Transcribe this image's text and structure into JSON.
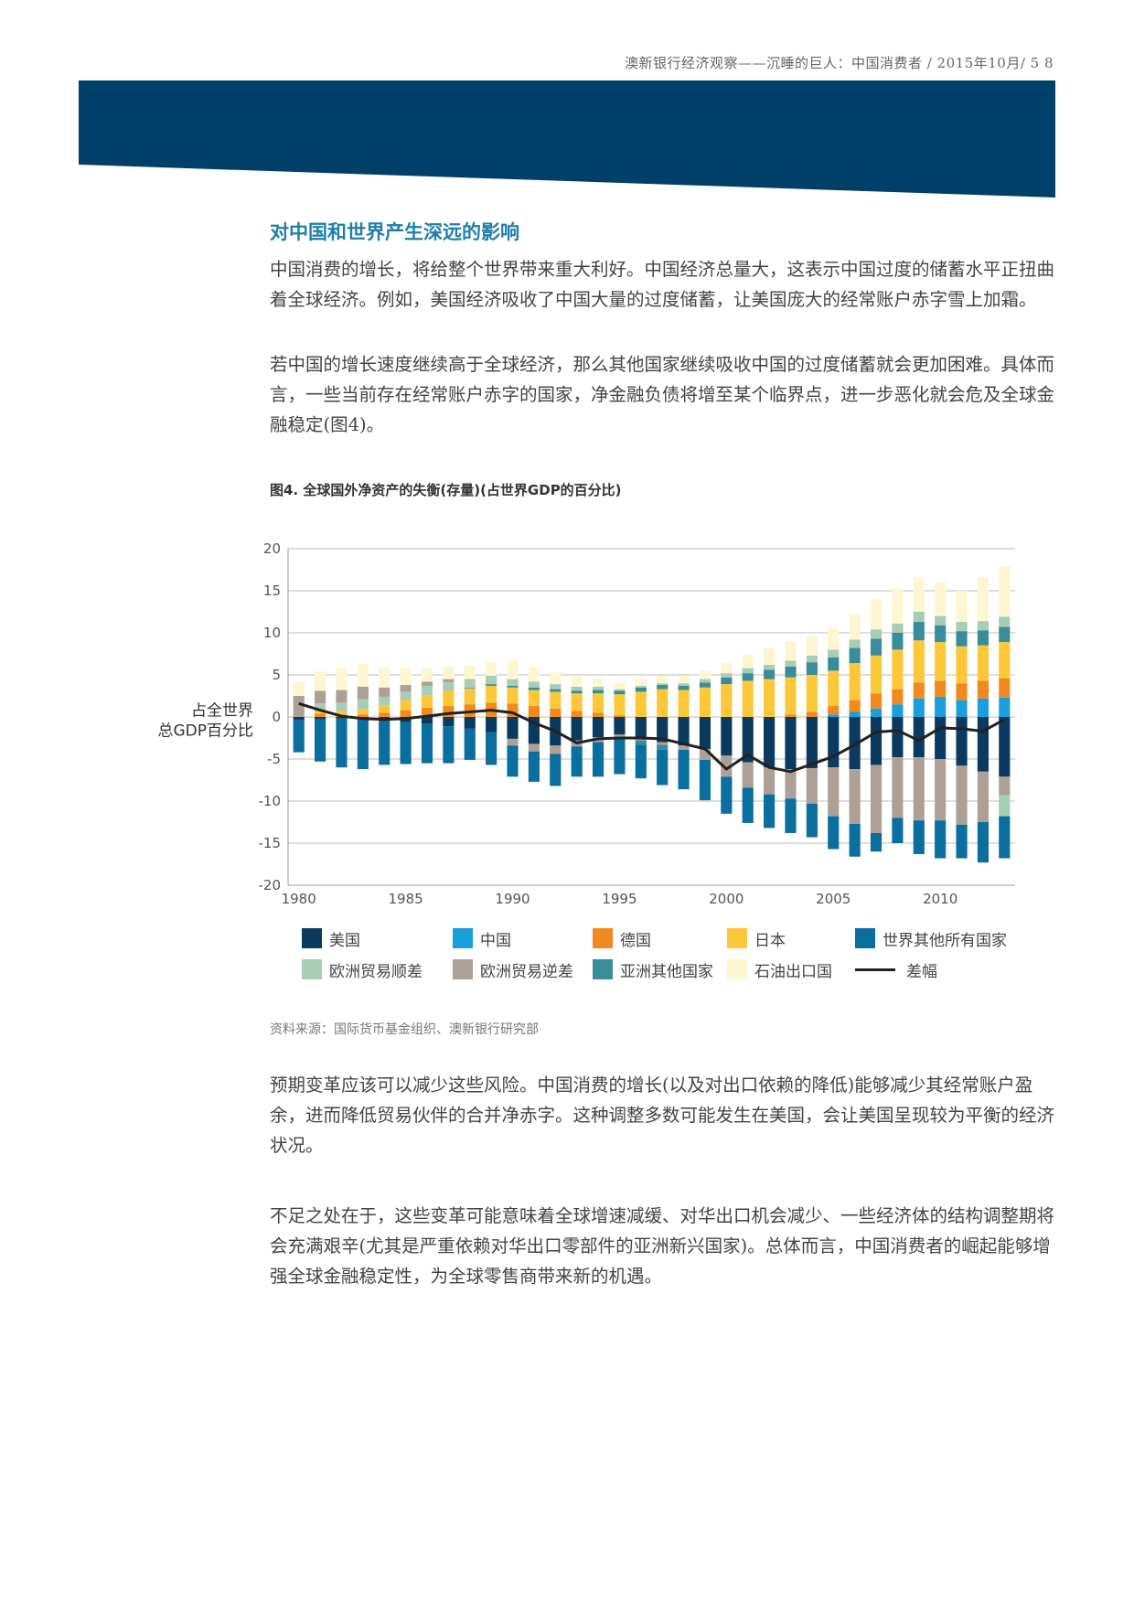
{
  "header": {
    "running_title": "澳新银行经济观察——沉睡的巨人：中国消费者 / 2015年10月/ 5   8"
  },
  "section": {
    "title": "对中国和世界产生深远的影响"
  },
  "paragraphs": {
    "p1": "中国消费的增长，将给整个世界带来重大利好。中国经济总量大，这表示中国过度的储蓄水平正扭曲着全球经济。例如，美国经济吸收了中国大量的过度储蓄，让美国庞大的经常账户赤字雪上加霜。",
    "p2": "若中国的增长速度继续高于全球经济，那么其他国家继续吸收中国的过度储蓄就会更加困难。具体而言，一些当前存在经常账户赤字的国家，净金融负债将增至某个临界点，进一步恶化就会危及全球金融稳定(图4)。",
    "p3": "预期变革应该可以减少这些风险。中国消费的增长(以及对出口依赖的降低)能够减少其经常账户盈余，进而降低贸易伙伴的合并净赤字。这种调整多数可能发生在美国，会让美国呈现较为平衡的经济状况。",
    "p4": "不足之处在于，这些变革可能意味着全球增速减缓、对华出口机会减少、一些经济体的结构调整期将会充满艰辛(尤其是严重依赖对华出口零部件的亚洲新兴国家)。总体而言，中国消费者的崛起能够增强全球金融稳定性，为全球零售商带来新的机遇。"
  },
  "figure": {
    "title": "图4. 全球国外净资产的失衡(存量)(占世界GDP的百分比)",
    "source": "资料来源：国际货币基金组织、澳新银行研究部"
  },
  "colors": {
    "banner": "#004068",
    "us": "#0b3a5e",
    "china": "#1a9fdc",
    "germany": "#f08a1e",
    "japan": "#fcc83a",
    "rest_of_world": "#0a6e9e",
    "euro_surplus": "#a9ccb4",
    "euro_deficit": "#ada197",
    "other_asia": "#3a8c9a",
    "oil": "#fdf6d2",
    "diff": "#222222"
  },
  "chart_data": {
    "type": "bar",
    "stacked": true,
    "ylabel": "占全世界\n总GDP百分比",
    "ylim": [
      -20,
      20
    ],
    "yticks": [
      20,
      15,
      10,
      5,
      0,
      -5,
      -10,
      -15,
      -20
    ],
    "xticks": [
      1980,
      1985,
      1990,
      1995,
      2000,
      2005,
      2010
    ],
    "x": [
      1980,
      1981,
      1982,
      1983,
      1984,
      1985,
      1986,
      1987,
      1988,
      1989,
      1990,
      1991,
      1992,
      1993,
      1994,
      1995,
      1996,
      1997,
      1998,
      1999,
      2000,
      2001,
      2002,
      2003,
      2004,
      2005,
      2006,
      2007,
      2008,
      2009,
      2010,
      2011,
      2012,
      2013
    ],
    "legend": [
      "美国",
      "中国",
      "德国",
      "日本",
      "世界其他所有国家",
      "欧洲贸易顺差",
      "欧洲贸易逆差",
      "亚洲其他国家",
      "石油出口国",
      "差幅"
    ],
    "positive_series": [
      {
        "key": "china",
        "name": "中国",
        "values": [
          0,
          0,
          0,
          0,
          0,
          0,
          0,
          0,
          0,
          0,
          0,
          0,
          0,
          0,
          0,
          0,
          0,
          0,
          0,
          0,
          0,
          0,
          0,
          0,
          0,
          0.3,
          0.6,
          1.0,
          1.5,
          2.2,
          2.4,
          2.0,
          2.2,
          2.3
        ]
      },
      {
        "key": "germany",
        "name": "德国",
        "values": [
          0,
          0.4,
          0.3,
          0.3,
          0.5,
          0.8,
          1.1,
          1.3,
          1.5,
          1.7,
          1.6,
          1.3,
          1.0,
          0.7,
          0.5,
          0.2,
          0,
          0,
          0,
          0,
          0,
          0,
          0,
          0.3,
          0.6,
          1.0,
          1.4,
          1.8,
          1.8,
          1.9,
          1.9,
          2.0,
          2.1,
          2.3
        ]
      },
      {
        "key": "japan",
        "name": "日本",
        "values": [
          0,
          0.2,
          0.4,
          0.6,
          0.9,
          1.2,
          1.5,
          1.8,
          1.9,
          2.0,
          1.9,
          1.9,
          2.0,
          2.1,
          2.3,
          2.5,
          3.0,
          3.3,
          3.2,
          3.5,
          3.9,
          4.3,
          4.5,
          4.4,
          4.4,
          4.2,
          4.4,
          4.5,
          4.7,
          5.0,
          4.6,
          4.4,
          4.2,
          4.3
        ]
      },
      {
        "key": "other_asia",
        "name": "亚洲其他国家",
        "values": [
          0,
          0,
          0,
          0,
          0,
          0,
          0,
          0,
          0.1,
          0.2,
          0.2,
          0.3,
          0.3,
          0.3,
          0.4,
          0.4,
          0.5,
          0.5,
          0.5,
          0.6,
          0.8,
          0.9,
          1.1,
          1.3,
          1.5,
          1.6,
          1.8,
          2.0,
          2.0,
          2.2,
          2.0,
          1.8,
          1.8,
          1.8
        ]
      },
      {
        "key": "euro_surplus",
        "name": "欧洲贸易顺差",
        "values": [
          0,
          1.0,
          1.0,
          1.2,
          1.0,
          1.0,
          1.1,
          1.0,
          1.0,
          1.0,
          0.8,
          0.7,
          0.6,
          0.5,
          0.4,
          0.2,
          0.2,
          0.2,
          0.3,
          0.4,
          0.5,
          0.6,
          0.6,
          0.7,
          0.8,
          0.9,
          1.0,
          1.1,
          1.1,
          1.2,
          1.1,
          1.1,
          1.1,
          1.2
        ]
      },
      {
        "key": "euro_deficit",
        "name": "欧洲贸易逆差",
        "values": [
          2.5,
          1.5,
          1.5,
          1.5,
          1.1,
          0.8,
          0.5,
          0.4,
          0,
          0,
          0,
          0,
          0,
          0,
          0,
          0,
          0,
          0,
          0,
          0,
          0,
          0,
          0,
          0,
          0,
          0,
          0,
          0,
          0,
          0,
          0,
          0,
          0,
          0
        ]
      },
      {
        "key": "oil",
        "name": "石油出口国",
        "values": [
          1.7,
          2.3,
          2.6,
          2.7,
          2.4,
          2.0,
          1.6,
          1.5,
          1.6,
          1.6,
          2.2,
          1.7,
          1.4,
          1.2,
          1.0,
          0.8,
          0.8,
          0.9,
          0.9,
          1.0,
          1.2,
          1.6,
          2.0,
          2.3,
          2.3,
          2.5,
          3.0,
          3.6,
          4.2,
          4.0,
          4.0,
          3.7,
          5.2,
          6.0
        ]
      }
    ],
    "negative_series": [
      {
        "key": "us",
        "name": "美国",
        "values": [
          -0.4,
          -0.3,
          -0.2,
          -0.2,
          -0.5,
          -0.6,
          -0.8,
          -1.1,
          -1.4,
          -1.8,
          -2.6,
          -3.2,
          -3.4,
          -2.8,
          -2.4,
          -2.1,
          -2.4,
          -3.0,
          -3.4,
          -3.8,
          -4.6,
          -5.4,
          -6.0,
          -6.2,
          -6.1,
          -6.0,
          -6.2,
          -5.7,
          -4.8,
          -4.8,
          -5.0,
          -5.8,
          -6.5,
          -7.1
        ]
      },
      {
        "key": "euro_deficit_neg",
        "name": "欧洲贸易逆差",
        "values": [
          0,
          0,
          0,
          0,
          0,
          0,
          0,
          0,
          0,
          0,
          -0.8,
          -0.9,
          -1.0,
          -0.7,
          -0.6,
          -0.4,
          -0.4,
          -0.3,
          -0.5,
          -1.3,
          -2.5,
          -3.0,
          -3.2,
          -3.5,
          -4.2,
          -5.8,
          -6.5,
          -8.1,
          -7.2,
          -7.5,
          -7.3,
          -7.0,
          -6.0,
          -2.2
        ]
      },
      {
        "key": "euro_surplus_neg",
        "name": "欧洲贸易顺差",
        "values": [
          0,
          0,
          0,
          0,
          0,
          0,
          0,
          0,
          0,
          0,
          0,
          0,
          0,
          0,
          0,
          0,
          0,
          0,
          0,
          0,
          0,
          0,
          0,
          0,
          0,
          0,
          0,
          0,
          0,
          0,
          0,
          0,
          0,
          -2.5
        ]
      },
      {
        "key": "other_asia_neg",
        "name": "亚洲其他国家",
        "values": [
          0,
          0,
          0,
          0,
          0,
          0,
          0,
          0,
          0,
          0,
          0,
          0,
          0,
          0,
          0,
          0,
          -0.5,
          -0.6,
          0,
          0,
          0,
          0,
          0,
          0,
          0,
          0,
          0,
          0,
          0,
          0,
          0,
          0,
          0,
          0
        ]
      },
      {
        "key": "rest_of_world",
        "name": "世界其他所有国家",
        "values": [
          -3.8,
          -5.0,
          -5.8,
          -6.0,
          -5.2,
          -5.0,
          -4.7,
          -4.4,
          -3.7,
          -3.9,
          -3.7,
          -3.6,
          -3.8,
          -3.6,
          -4.1,
          -4.3,
          -4.0,
          -4.2,
          -4.7,
          -4.8,
          -4.4,
          -4.2,
          -4.0,
          -4.1,
          -4.0,
          -3.9,
          -3.9,
          -2.2,
          -3.0,
          -4.0,
          -4.5,
          -4.0,
          -4.8,
          -5.0
        ]
      }
    ],
    "line_series": {
      "key": "diff",
      "name": "差幅",
      "values": [
        1.6,
        0.8,
        0.1,
        -0.2,
        -0.3,
        -0.2,
        0.1,
        0.4,
        0.6,
        0.8,
        0.5,
        -0.7,
        -1.7,
        -3.1,
        -2.6,
        -2.5,
        -2.5,
        -2.6,
        -3.2,
        -3.8,
        -6.2,
        -4.5,
        -6.0,
        -6.5,
        -5.6,
        -4.7,
        -3.3,
        -1.8,
        -1.6,
        -2.8,
        -1.3,
        -1.4,
        -1.7,
        -0.3
      ]
    }
  }
}
